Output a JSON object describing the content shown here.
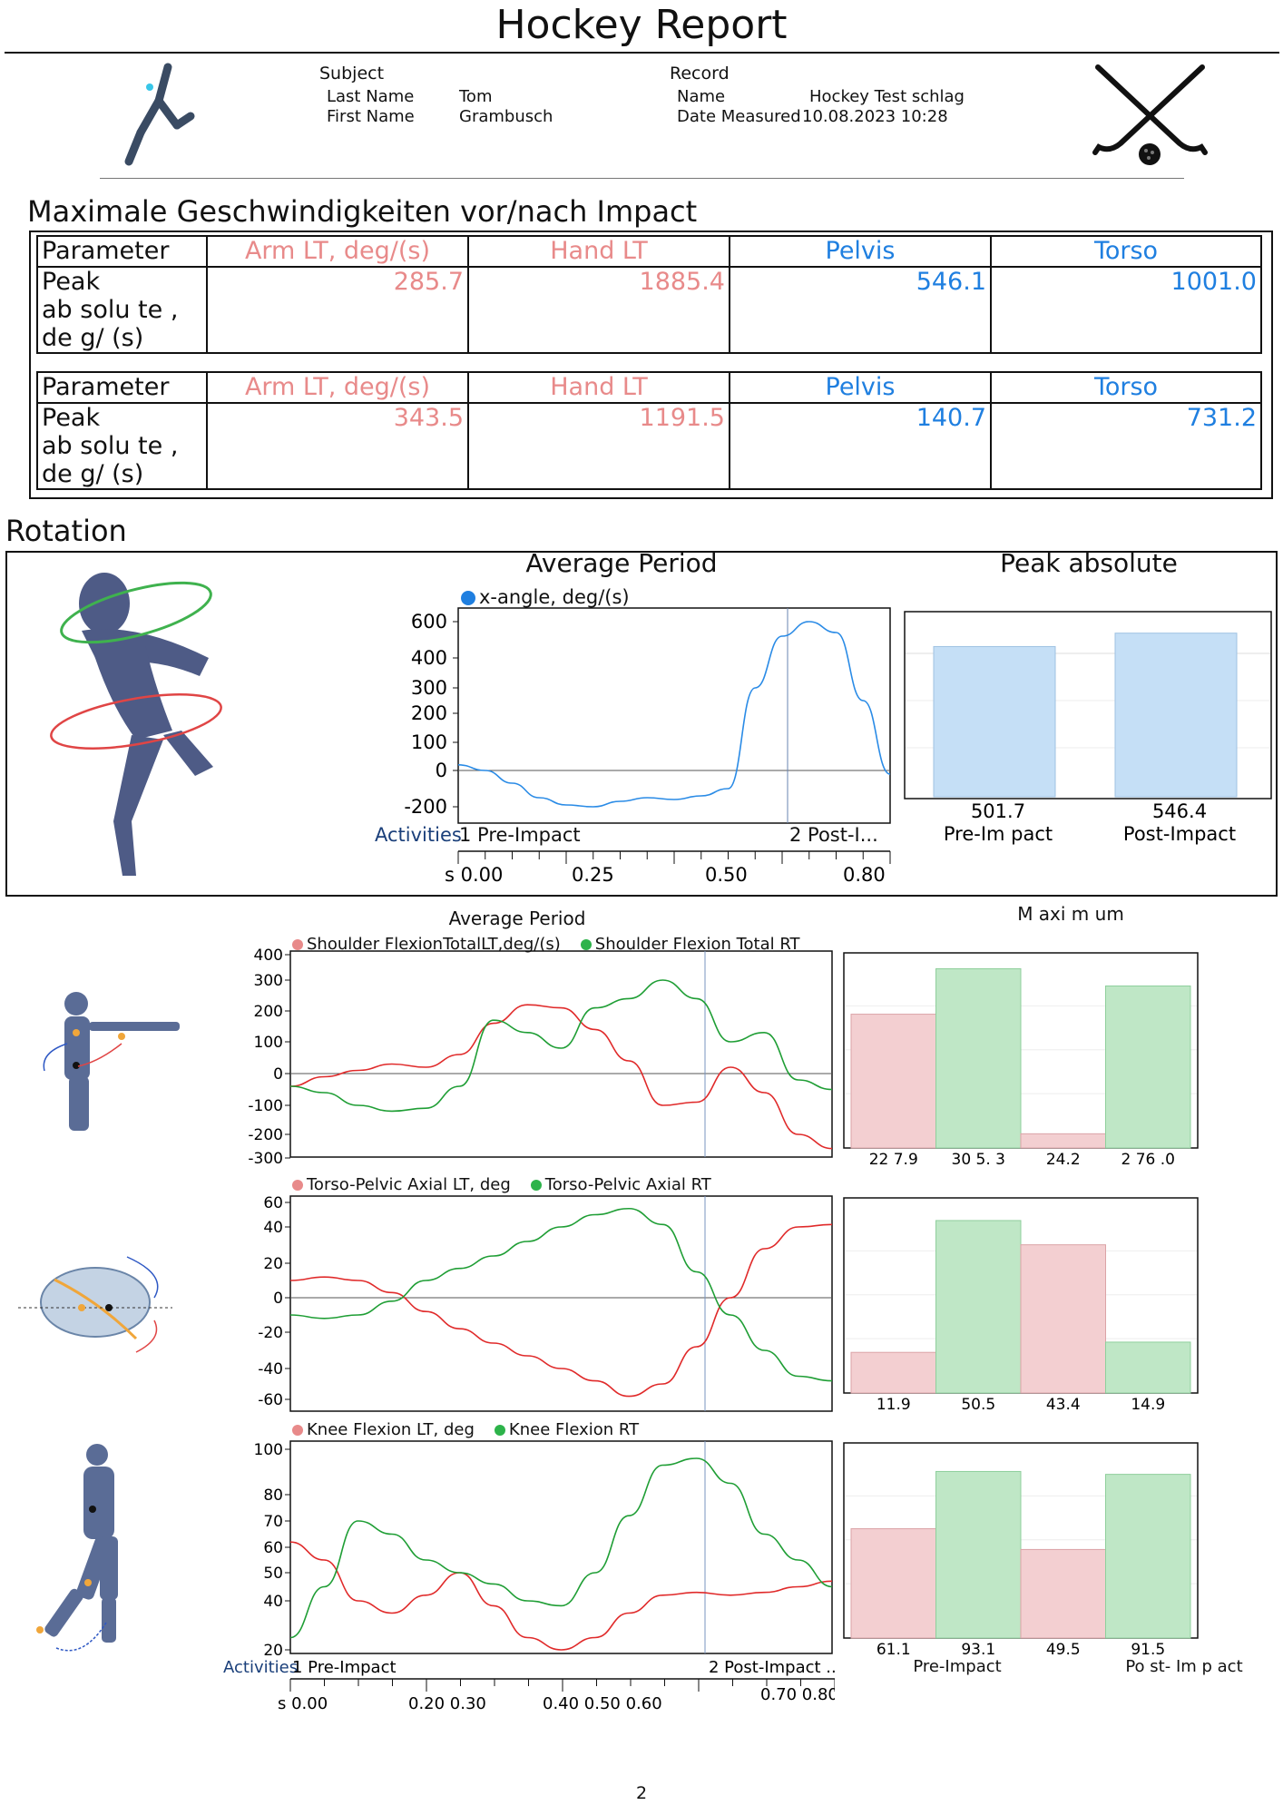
{
  "report": {
    "title": "Hockey Report",
    "page_number": "2"
  },
  "header": {
    "subject_label": "Subject",
    "last_name_label": "Last Name",
    "last_name_value": "Tom",
    "first_name_label": "First Name",
    "first_name_value": "Grambusch",
    "record_label": "Record",
    "record_name_label": "Name",
    "record_name_value": "Hockey Test schlag",
    "date_label": "Date Measured",
    "date_value": "10.08.2023 10:28"
  },
  "max_speed": {
    "title": "Maximale Geschwindigkeiten vor/nach Impact",
    "tables": [
      {
        "param_label": "Parameter",
        "headers": [
          "Arm LT, deg/(s)",
          "Hand LT",
          "Pelvis",
          "Torso"
        ],
        "row_label": "Peak\nab solu te ,\nde g/ (s)",
        "values": [
          "285.7",
          "1885.4",
          "546.1",
          "1001.0"
        ]
      },
      {
        "param_label": "Parameter",
        "headers": [
          "Arm LT, deg/(s)",
          "Hand LT",
          "Pelvis",
          "Torso"
        ],
        "row_label": "Peak\nab solu te ,\nde g/ (s)",
        "values": [
          "343.5",
          "1191.5",
          "140.7",
          "731.2"
        ]
      }
    ]
  },
  "rotation": {
    "title": "Rotation",
    "avg_title": "Average Period",
    "peak_title": "Peak absolute",
    "legend": "x-angle, deg/(s)",
    "y_ticks": [
      "600",
      "400",
      "300",
      "200",
      "100",
      "0",
      "-200"
    ],
    "activities_label": "Activities",
    "activity1": "1 Pre-Impact",
    "activity2": "2 Post-I...",
    "x_ticks": [
      "s 0.00",
      "0.25",
      "0.50",
      "0.80"
    ],
    "colors": {
      "line": "#2a8be6",
      "bar": "#c5dff6"
    }
  },
  "lower": {
    "avg_title": "Average Period",
    "max_title": "M axi m um",
    "colors": {
      "lt": "#e02a2a",
      "rt": "#1f9e35",
      "lt_bar": "#f3cfd1",
      "rt_bar": "#bfe7c6"
    },
    "charts": [
      {
        "legend_lt": "Shoulder FlexionTotalLT,deg/(s)",
        "legend_rt": "Shoulder Flexion Total RT",
        "y_ticks": [
          "400",
          "300",
          "200",
          "100",
          "0",
          "-100",
          "-200",
          "-300"
        ],
        "bar_labels": [
          "22 7.9",
          "30 5. 3",
          "24.2",
          "2 76 .0"
        ]
      },
      {
        "legend_lt": "Torso-Pelvic Axial LT, deg",
        "legend_rt": "Torso-Pelvic Axial RT",
        "y_ticks": [
          "60",
          "40",
          "20",
          "0",
          "-20",
          "-40",
          "-60"
        ],
        "bar_labels": [
          "11.9",
          "50.5",
          "43.4",
          "14.9"
        ]
      },
      {
        "legend_lt": "Knee Flexion LT, deg",
        "legend_rt": "Knee Flexion RT",
        "y_ticks": [
          "100",
          "80",
          "70",
          "60",
          "50",
          "40",
          "20"
        ],
        "bar_labels": [
          "61.1",
          "93.1",
          "49.5",
          "91.5"
        ]
      }
    ],
    "activities_label": "Activities",
    "activity1": "1 Pre-Impact",
    "activity2": "2 Post-Impact ...",
    "x_ticks": [
      "s 0.00",
      "0.20 0.30",
      "0.40 0.50 0.60",
      "0.70 0.80"
    ],
    "group_pre": "Pre-Impact",
    "group_post": "Po st- Im p act"
  },
  "chart_data": [
    {
      "type": "line",
      "title": "Average Period",
      "series": [
        {
          "name": "x-angle, deg/(s)",
          "x": [
            0.0,
            0.05,
            0.1,
            0.15,
            0.2,
            0.25,
            0.3,
            0.35,
            0.4,
            0.45,
            0.5,
            0.55,
            0.6,
            0.65,
            0.7,
            0.75,
            0.8
          ],
          "values": [
            20,
            0,
            -70,
            -150,
            -190,
            -200,
            -170,
            -150,
            -160,
            -140,
            -100,
            300,
            520,
            600,
            540,
            250,
            -20
          ]
        }
      ],
      "xlim": [
        0,
        0.8
      ]
    },
    {
      "type": "bar",
      "title": "Peak absolute",
      "categories": [
        "Pre-Im pact",
        "Post-Impact"
      ],
      "values": [
        501.7,
        546.4
      ]
    },
    {
      "type": "line",
      "title": "Average Period",
      "series": [
        {
          "name": "Shoulder FlexionTotalLT,deg/(s)",
          "values": [
            -40,
            -10,
            10,
            30,
            20,
            60,
            160,
            220,
            210,
            140,
            40,
            -100,
            -90,
            20,
            -60,
            -200,
            -260
          ]
        },
        {
          "name": "Shoulder Flexion Total RT",
          "values": [
            -40,
            -60,
            -100,
            -120,
            -110,
            -40,
            170,
            130,
            80,
            210,
            240,
            300,
            240,
            100,
            130,
            -20,
            -50
          ]
        }
      ]
    },
    {
      "type": "bar",
      "title": "M axi m um",
      "categories": [
        "22 7.9",
        "30 5. 3",
        "24.2",
        "2 76 .0"
      ],
      "values": [
        227.9,
        305.3,
        24.2,
        276.0
      ]
    },
    {
      "type": "line",
      "series": [
        {
          "name": "Torso-Pelvic Axial LT, deg",
          "values": [
            10,
            12,
            10,
            3,
            -8,
            -18,
            -26,
            -33,
            -40,
            -48,
            -58,
            -50,
            -28,
            0,
            28,
            40,
            42
          ]
        },
        {
          "name": "Torso-Pelvic Axial RT",
          "values": [
            -10,
            -12,
            -10,
            -2,
            10,
            17,
            24,
            32,
            40,
            50,
            55,
            42,
            15,
            -10,
            -30,
            -45,
            -48
          ]
        }
      ]
    },
    {
      "type": "bar",
      "categories": [
        "11.9",
        "50.5",
        "43.4",
        "14.9"
      ],
      "values": [
        11.9,
        50.5,
        43.4,
        14.9
      ]
    },
    {
      "type": "line",
      "series": [
        {
          "name": "Knee Flexion LT, deg",
          "values": [
            62,
            55,
            40,
            35,
            42,
            50,
            38,
            25,
            20,
            25,
            35,
            42,
            43,
            42,
            43,
            45,
            47
          ]
        },
        {
          "name": "Knee Flexion RT",
          "values": [
            25,
            45,
            70,
            65,
            55,
            50,
            46,
            40,
            38,
            50,
            72,
            93,
            96,
            85,
            65,
            55,
            45
          ]
        }
      ]
    },
    {
      "type": "bar",
      "categories": [
        "Pre-Impact",
        "Po st- Im p act"
      ],
      "series": [
        {
          "name": "Knee Flexion LT, deg",
          "values": [
            61.1,
            49.5
          ]
        },
        {
          "name": "Knee Flexion RT",
          "values": [
            93.1,
            91.5
          ]
        }
      ]
    }
  ]
}
